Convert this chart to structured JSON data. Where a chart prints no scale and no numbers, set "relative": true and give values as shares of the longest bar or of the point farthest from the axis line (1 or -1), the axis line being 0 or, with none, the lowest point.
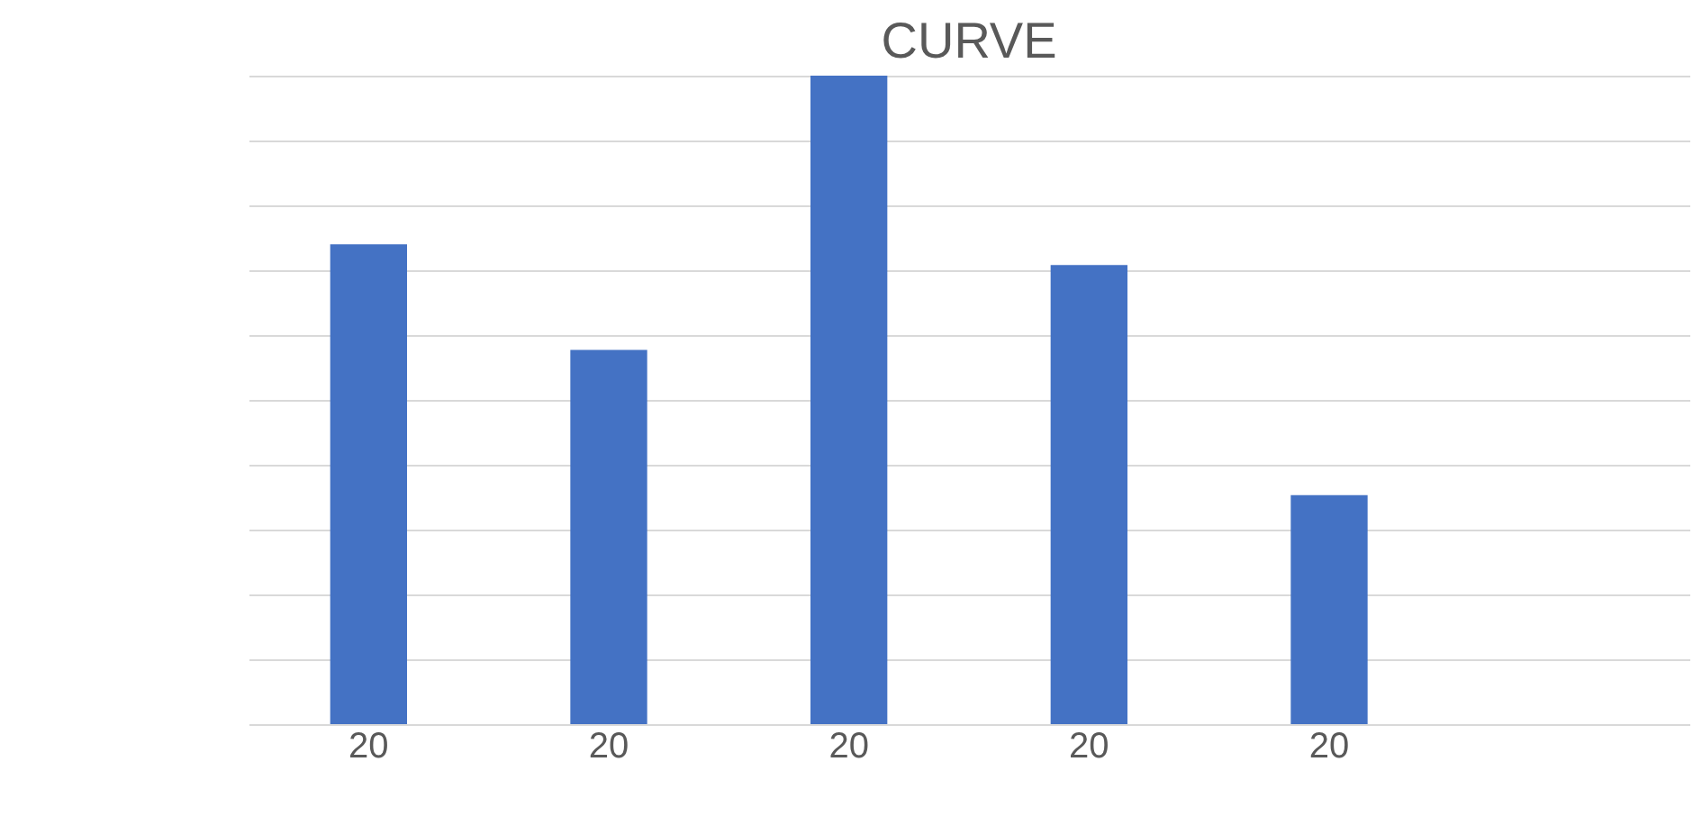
{
  "chart_data": {
    "type": "bar",
    "title": "CURVE",
    "categories": [
      "20",
      "20",
      "20",
      "20",
      "20",
      null
    ],
    "relative": true,
    "values": [
      0.74,
      0.577,
      1,
      0.708,
      0.353,
      null
    ],
    "color": "#4472c4",
    "grid": "y"
  }
}
